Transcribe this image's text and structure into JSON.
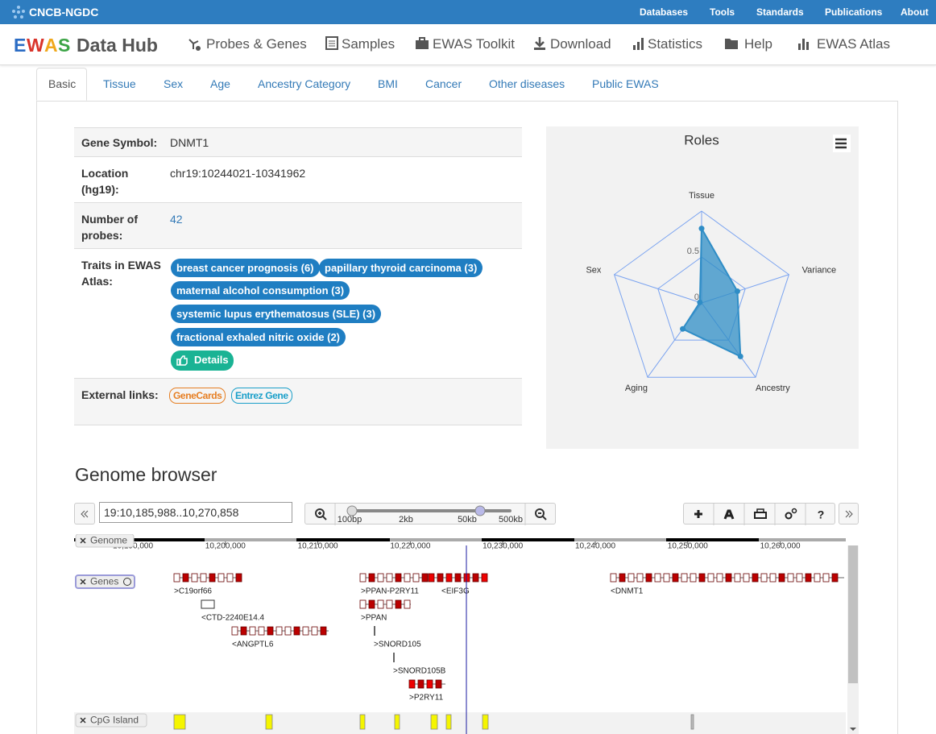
{
  "topbar": {
    "brand": "CNCB-NGDC",
    "links": [
      "Databases",
      "Tools",
      "Standards",
      "Publications",
      "About"
    ]
  },
  "navbar": {
    "brand_letters": [
      "E",
      "W",
      "A",
      "S"
    ],
    "brand_rest": "Data Hub",
    "items": [
      "Probes & Genes",
      "Samples",
      "EWAS Toolkit",
      "Download",
      "Statistics",
      "Help",
      "EWAS Atlas"
    ]
  },
  "tabs": [
    "Basic",
    "Tissue",
    "Sex",
    "Age",
    "Ancestry Category",
    "BMI",
    "Cancer",
    "Other diseases",
    "Public EWAS"
  ],
  "gene_info": {
    "symbol_label": "Gene Symbol:",
    "symbol": "DNMT1",
    "location_label": "Location (hg19):",
    "location": "chr19:10244021-10341962",
    "probes_label": "Number of probes:",
    "probes": 42,
    "traits_label": "Traits in EWAS Atlas:",
    "traits": [
      "breast cancer prognosis (6)",
      "papillary thyroid carcinoma (3)",
      "maternal alcohol consumption (3)",
      "systemic lupus erythematosus (SLE) (3)",
      "fractional exhaled nitric oxide (2)"
    ],
    "details": "Details",
    "links_label": "External links:",
    "links": [
      "GeneCards",
      "Entrez Gene"
    ]
  },
  "chart_data": {
    "type": "radar",
    "title": "Roles",
    "categories": [
      "Tissue",
      "Variance",
      "Ancestry",
      "Aging",
      "Sex"
    ],
    "values": [
      0.81,
      0.41,
      0.72,
      0.35,
      0.02
    ],
    "ylim": [
      0,
      1
    ],
    "yticks": [
      0,
      0.5
    ],
    "color": "#2f8dc6"
  },
  "genome_browser": {
    "title": "Genome browser",
    "location": "19:10,185,988..10,270,858",
    "zoom_labels": [
      "100bp",
      "2kb",
      "50kb",
      "500kb"
    ],
    "axis_labels": [
      "10,190,000",
      "10,200,000",
      "10,210,000",
      "10,220,000",
      "10,230,000",
      "10,240,000",
      "10,250,000",
      "10,260,000"
    ],
    "tracks": [
      "Genome",
      "Genes",
      "CpG Island"
    ],
    "genes": [
      ">C19orf66",
      "<CTD-2240E14.4",
      "<ANGPTL6",
      ">PPAN-P2RY11",
      ">PPAN",
      ">SNORD105",
      ">SNORD105B",
      ">P2RY11",
      "<EIF3G",
      "<DNMT1"
    ],
    "help_button": "?"
  }
}
